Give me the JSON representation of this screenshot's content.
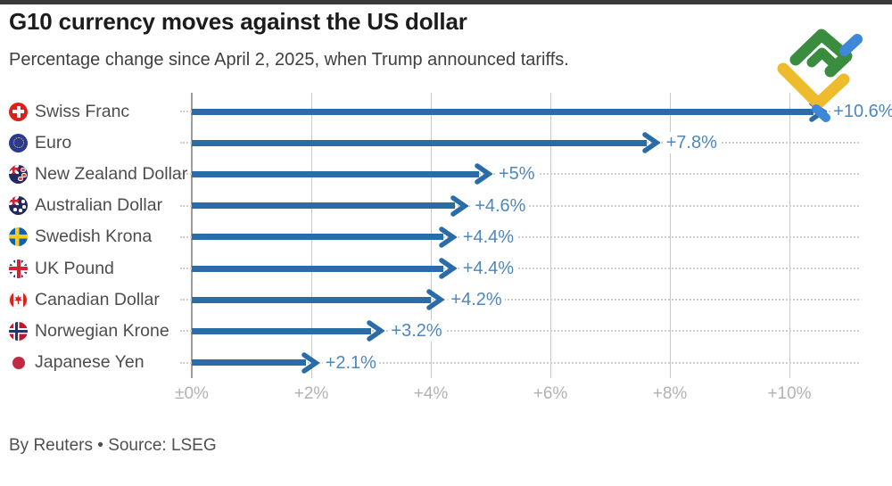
{
  "header": {
    "title": "G10 currency moves against the US dollar",
    "subtitle": "Percentage change since April 2, 2025, when Trump announced tariffs."
  },
  "footer": {
    "credit": "By Reuters • Source: LSEG"
  },
  "logo": {
    "name": "LiteFinance",
    "colors": {
      "green": "#3a8c3f",
      "blue": "#3f87d8",
      "yellow": "#eebb2d"
    }
  },
  "chart_data": {
    "type": "bar",
    "orientation": "horizontal",
    "title": "G10 currency moves against the US dollar",
    "subtitle": "Percentage change since April 2, 2025, when Trump announced tariffs.",
    "unit": "percent change vs USD",
    "categories": [
      "Swiss Franc",
      "Euro",
      "New Zealand Dollar",
      "Australian Dollar",
      "Swedish Krona",
      "UK Pound",
      "Canadian Dollar",
      "Norwegian Krone",
      "Japanese Yen"
    ],
    "values": [
      10.6,
      7.8,
      5,
      4.6,
      4.4,
      4.4,
      4.2,
      3.2,
      2.1
    ],
    "value_labels": [
      "+10.6%",
      "+7.8%",
      "+5%",
      "+4.6%",
      "+4.4%",
      "+4.4%",
      "+4.2%",
      "+3.2%",
      "+2.1%"
    ],
    "flags": [
      "chf",
      "eur",
      "nzd",
      "aud",
      "sek",
      "gbp",
      "cad",
      "nok",
      "jpy"
    ],
    "x_ticks": [
      "±0%",
      "+2%",
      "+4%",
      "+6%",
      "+8%",
      "+10%"
    ],
    "x_tick_values": [
      0,
      2,
      4,
      6,
      8,
      10
    ],
    "xlim": [
      0,
      11.2
    ],
    "grid": true,
    "legend": false,
    "colors": {
      "arrow": "#2a6ca8",
      "value_label": "#4d87bd",
      "gridline": "#c9c9c9",
      "axis_line": "#9e9e9e",
      "tick_label": "#b2b2b2",
      "category_label": "#4d4d4d"
    }
  }
}
